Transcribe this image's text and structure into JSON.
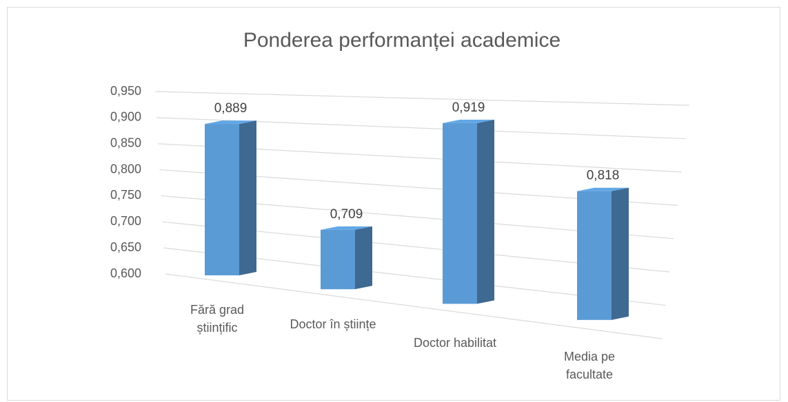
{
  "chart_data": {
    "type": "bar3d",
    "title": "Ponderea performanței academice",
    "categories": [
      "Fără grad științific",
      "Doctor în științe",
      "Doctor habilitat",
      "Media pe facultate"
    ],
    "values": [
      0.889,
      0.709,
      0.919,
      0.818
    ],
    "value_labels": [
      "0,889",
      "0,709",
      "0,919",
      "0,818"
    ],
    "color": "#5b9bd5",
    "ylim": [
      0.6,
      0.95
    ],
    "yticks": [
      {
        "value": 0.6,
        "label": "0,600"
      },
      {
        "value": 0.65,
        "label": "0,650"
      },
      {
        "value": 0.7,
        "label": "0,700"
      },
      {
        "value": 0.75,
        "label": "0,750"
      },
      {
        "value": 0.8,
        "label": "0,800"
      },
      {
        "value": 0.85,
        "label": "0,850"
      },
      {
        "value": 0.9,
        "label": "0,900"
      },
      {
        "value": 0.95,
        "label": "0,950"
      }
    ],
    "grid": true
  }
}
